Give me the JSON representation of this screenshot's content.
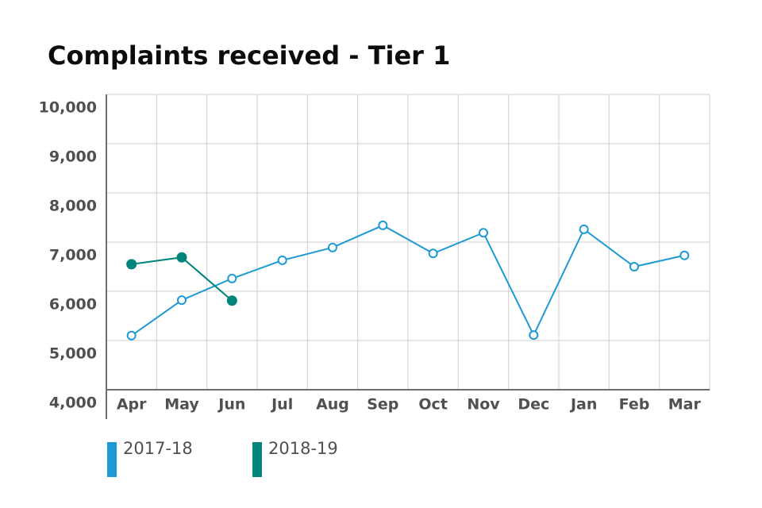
{
  "chart_data": {
    "type": "line",
    "title": "Complaints received - Tier 1",
    "categories": [
      "Apr",
      "May",
      "Jun",
      "Jul",
      "Aug",
      "Sep",
      "Oct",
      "Nov",
      "Dec",
      "Jan",
      "Feb",
      "Mar"
    ],
    "series": [
      {
        "name": "2017-18",
        "color": "#1d9ad6",
        "marker": "open",
        "values": [
          5100,
          5820,
          6260,
          6630,
          6890,
          7340,
          6770,
          7190,
          5110,
          7260,
          6500,
          6730
        ]
      },
      {
        "name": "2018-19",
        "color": "#00857a",
        "marker": "filled",
        "values": [
          6550,
          6690,
          5810,
          null,
          null,
          null,
          null,
          null,
          null,
          null,
          null,
          null
        ]
      }
    ],
    "ylim": [
      4000,
      10000
    ],
    "yticks": [
      {
        "value": 4000,
        "label": "4,000"
      },
      {
        "value": 5000,
        "label": "5,000"
      },
      {
        "value": 6000,
        "label": "6,000"
      },
      {
        "value": 7000,
        "label": "7,000"
      },
      {
        "value": 8000,
        "label": "8,000"
      },
      {
        "value": 9000,
        "label": "9,000"
      },
      {
        "value": 10000,
        "label": "10,000"
      }
    ],
    "grid": true,
    "legend": "bottom"
  }
}
